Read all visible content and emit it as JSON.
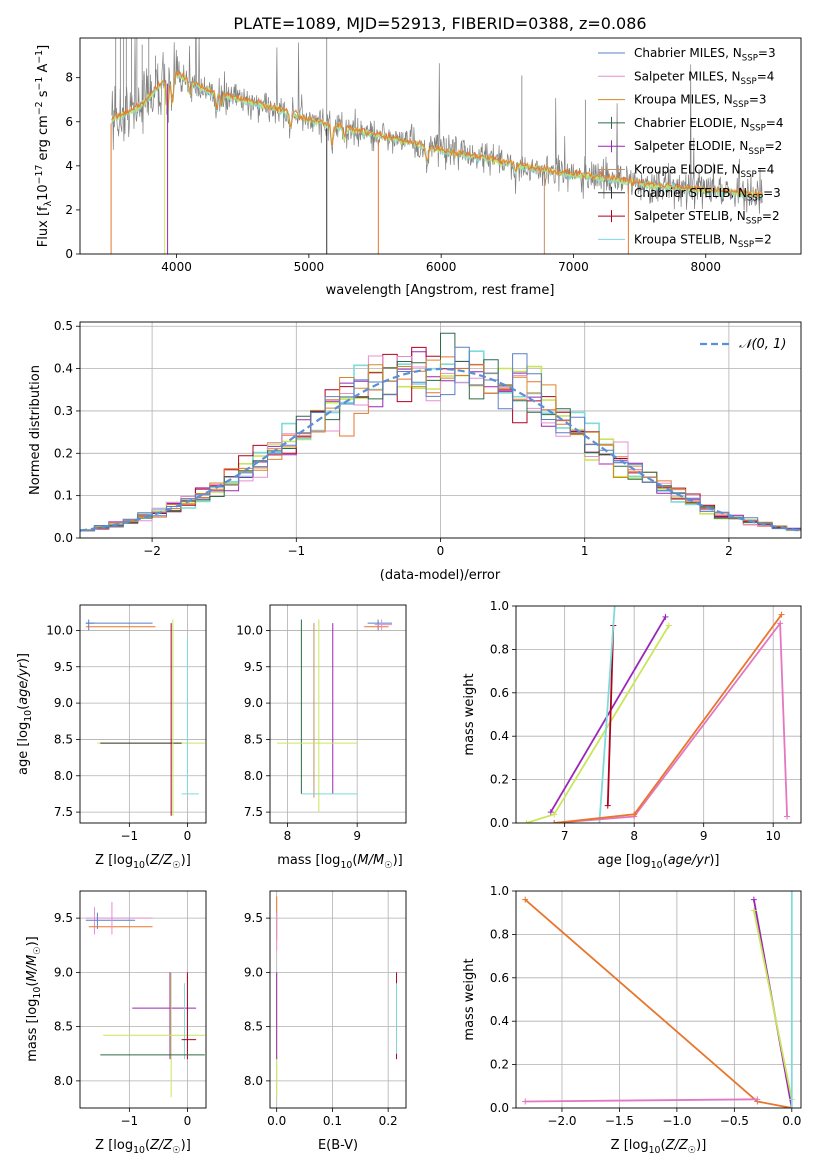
{
  "figure": {
    "title": "PLATE=1089, MJD=52913, FIBERID=0388, z=0.086"
  },
  "colors": {
    "Chabrier MILES": "#5b7fc7",
    "Salpeter MILES": "#e58fd0",
    "Kroupa MILES": "#d4882c",
    "Chabrier ELODIE": "#2f6b4a",
    "Salpeter ELODIE": "#9b26b6",
    "Kroupa ELODIE": "#c98d63",
    "Chabrier STELIB": "#333333",
    "Salpeter STELIB": "#b00020",
    "Kroupa STELIB": "#7fd3ee",
    "data": "#808080",
    "yellowgreen": "#c9e65a",
    "orange": "#e8762b",
    "gaussian": "#5b8fd6",
    "pink": "#e377c2",
    "cyan": "#7fdbda"
  },
  "chart_data": [
    {
      "type": "line",
      "panel": "spectrum",
      "title": "PLATE=1089, MJD=52913, FIBERID=0388, z=0.086",
      "xlabel": "wavelength [Angstrom, rest frame]",
      "ylabel": "Flux [f_λ 10^-17 erg cm^-2 s^-1 A^-1]",
      "xlim": [
        3270,
        8720
      ],
      "ylim": [
        0,
        9.8
      ],
      "xticks": [
        4000,
        5000,
        6000,
        7000,
        8000
      ],
      "yticks": [
        0,
        2,
        4,
        6,
        8
      ],
      "grid": false,
      "legend_position": "top-right",
      "legend": [
        {
          "label": "Chabrier MILES",
          "sub": "N",
          "subscript": "SSP",
          "value": "=3",
          "color": "#5b7fc7"
        },
        {
          "label": "Salpeter MILES",
          "sub": "N",
          "subscript": "SSP",
          "value": "=4",
          "color": "#e58fd0"
        },
        {
          "label": "Kroupa MILES",
          "sub": "N",
          "subscript": "SSP",
          "value": "=3",
          "color": "#d4882c"
        },
        {
          "label": "Chabrier ELODIE",
          "sub": "N",
          "subscript": "SSP",
          "value": "=4",
          "color": "#2f6b4a"
        },
        {
          "label": "Salpeter ELODIE",
          "sub": "N",
          "subscript": "SSP",
          "value": "=2",
          "color": "#9b26b6"
        },
        {
          "label": "Kroupa ELODIE",
          "sub": "N",
          "subscript": "SSP",
          "value": "=4",
          "color": "#c98d63"
        },
        {
          "label": "Chabrier STELIB",
          "sub": "N",
          "subscript": "SSP",
          "value": "=3",
          "color": "#333333"
        },
        {
          "label": "Salpeter STELIB",
          "sub": "N",
          "subscript": "SSP",
          "value": "=2",
          "color": "#b00020"
        },
        {
          "label": "Kroupa STELIB",
          "sub": "N",
          "subscript": "SSP",
          "value": "=2",
          "color": "#7fd3ee"
        }
      ],
      "continuum": {
        "x": [
          3500,
          3700,
          3900,
          4000,
          4200,
          4500,
          4800,
          5000,
          5200,
          5500,
          5800,
          6000,
          6300,
          6600,
          7000,
          7300,
          7600,
          8000,
          8400
        ],
        "y": [
          6.1,
          6.6,
          7.8,
          8.2,
          7.5,
          7.0,
          6.5,
          6.1,
          5.8,
          5.4,
          5.0,
          4.7,
          4.4,
          4.0,
          3.6,
          3.4,
          3.1,
          2.9,
          2.7
        ]
      }
    },
    {
      "type": "step",
      "panel": "residuals",
      "xlabel": "(data-model)/error",
      "ylabel": "Normed distribution",
      "xlim": [
        -2.5,
        2.5
      ],
      "ylim": [
        0,
        0.51
      ],
      "xticks": [
        -2,
        -1,
        0,
        1,
        2
      ],
      "yticks": [
        0.0,
        0.1,
        0.2,
        0.3,
        0.4,
        0.5
      ],
      "grid": true,
      "legend_position": "top-right",
      "legend": [
        {
          "label": "𝒩(0, 1)",
          "color": "#5b8fd6",
          "dashed": true
        }
      ],
      "gaussian": {
        "mean": 0,
        "sigma": 1
      }
    },
    {
      "type": "scatter",
      "panel": "age-vs-Z",
      "xlabel": "Z [log10(Z/Z☉)]",
      "ylabel": "age [log10(age/yr)]",
      "xlim": [
        -1.85,
        0.32
      ],
      "ylim": [
        7.35,
        10.35
      ],
      "xticks": [
        -1,
        0
      ],
      "yticks": [
        7.5,
        8.0,
        8.5,
        9.0,
        9.5,
        10.0
      ],
      "grid": true
    },
    {
      "type": "scatter",
      "panel": "age-vs-mass",
      "xlabel": "mass [log10(M/M☉)]",
      "xlim": [
        7.75,
        9.7
      ],
      "ylim": [
        7.35,
        10.35
      ],
      "xticks": [
        8,
        9
      ],
      "yticks": [
        7.5,
        8.0,
        8.5,
        9.0,
        9.5,
        10.0
      ],
      "grid": true
    },
    {
      "type": "line",
      "panel": "massweight-vs-age",
      "xlabel": "age [log10(age/yr)]",
      "ylabel": "mass weight",
      "xlim": [
        6.3,
        10.4
      ],
      "ylim": [
        0,
        1.0
      ],
      "xticks": [
        7,
        8,
        9,
        10
      ],
      "yticks": [
        0.0,
        0.2,
        0.4,
        0.6,
        0.8,
        1.0
      ],
      "grid": true,
      "series": [
        {
          "color": "#9b26b6",
          "x": [
            6.8,
            8.45
          ],
          "y": [
            0.05,
            0.95
          ]
        },
        {
          "color": "#c9e65a",
          "x": [
            6.45,
            6.85,
            8.5
          ],
          "y": [
            0.0,
            0.04,
            0.91
          ]
        },
        {
          "color": "#b00020",
          "x": [
            7.62,
            7.7
          ],
          "y": [
            0.08,
            0.91
          ]
        },
        {
          "color": "#7fdbda",
          "x": [
            7.5,
            7.72
          ],
          "y": [
            0.0,
            1.0
          ]
        },
        {
          "color": "#e377c2",
          "x": [
            6.85,
            8.0,
            10.1,
            10.2
          ],
          "y": [
            0.0,
            0.03,
            0.92,
            0.03
          ]
        },
        {
          "color": "#e8762b",
          "x": [
            6.85,
            8.0,
            10.12
          ],
          "y": [
            0.0,
            0.04,
            0.96
          ]
        }
      ]
    },
    {
      "type": "scatter",
      "panel": "mass-vs-Z",
      "xlabel": "Z [log10(Z/Z☉)]",
      "ylabel": "mass [log10(M/M☉)]",
      "xlim": [
        -1.85,
        0.32
      ],
      "ylim": [
        7.75,
        9.75
      ],
      "xticks": [
        -1,
        0
      ],
      "yticks": [
        8.0,
        8.5,
        9.0,
        9.5
      ],
      "grid": true
    },
    {
      "type": "scatter",
      "panel": "mass-vs-EBV",
      "xlabel": "E(B-V)",
      "xlim": [
        -0.012,
        0.232
      ],
      "ylim": [
        7.75,
        9.75
      ],
      "xticks": [
        0.0,
        0.1,
        0.2
      ],
      "yticks": [
        8.0,
        8.5,
        9.0,
        9.5
      ],
      "grid": true
    },
    {
      "type": "line",
      "panel": "massweight-vs-Z",
      "xlabel": "Z [log10(Z/Z☉)]",
      "ylabel": "mass weight",
      "xlim": [
        -2.4,
        0.08
      ],
      "ylim": [
        0,
        1.0
      ],
      "xticks": [
        -2.0,
        -1.5,
        -1.0,
        -0.5,
        0.0
      ],
      "yticks": [
        0.0,
        0.2,
        0.4,
        0.6,
        0.8,
        1.0
      ],
      "grid": true,
      "series": [
        {
          "color": "#e8762b",
          "x": [
            -2.32,
            -0.3,
            0.0
          ],
          "y": [
            0.96,
            0.03,
            0.0
          ]
        },
        {
          "color": "#e377c2",
          "x": [
            -2.32,
            -0.3
          ],
          "y": [
            0.03,
            0.04
          ]
        },
        {
          "color": "#9b26b6",
          "x": [
            -0.33,
            0.0
          ],
          "y": [
            0.96,
            0.0
          ]
        },
        {
          "color": "#c9e65a",
          "x": [
            -0.33,
            0.0
          ],
          "y": [
            0.91,
            0.04
          ]
        },
        {
          "color": "#7fdbda",
          "x": [
            0.0,
            0.0
          ],
          "y": [
            0.0,
            1.0
          ]
        }
      ]
    }
  ]
}
